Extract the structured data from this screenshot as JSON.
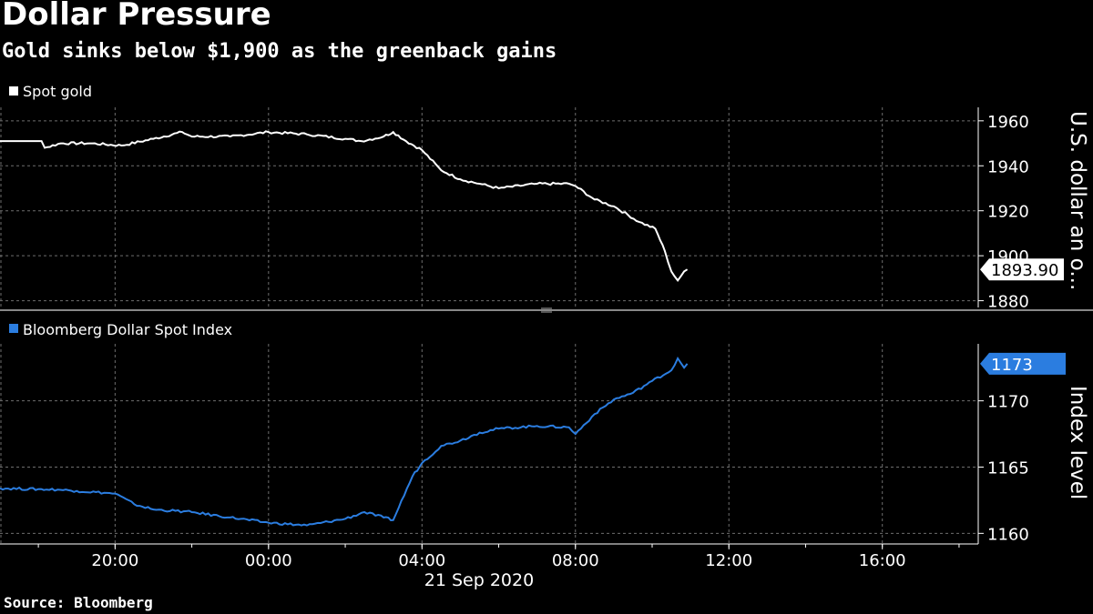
{
  "header": {
    "title": "Dollar Pressure",
    "subtitle": "Gold sinks below $1,900 as the greenback gains"
  },
  "footer": {
    "source": "Source: Bloomberg"
  },
  "colors": {
    "background": "#000000",
    "gold_line": "#ffffff",
    "dollar_line": "#2b7de0",
    "grid": "#6e6e6e"
  },
  "chart_data": [
    {
      "type": "line",
      "panel": "top",
      "ylabel": "U.S. dollar an o...",
      "yticks": [
        1880,
        1900,
        1920,
        1940,
        1960
      ],
      "ylim": [
        1877,
        1966
      ],
      "grid": true,
      "legend_position": "top-left",
      "last_value_label": "1893.90",
      "series": [
        {
          "name": "Spot gold",
          "x": [
            "2020-09-20T17:00",
            "2020-09-20T18:05",
            "2020-09-20T18:10",
            "2020-09-20T18:35",
            "2020-09-20T19:20",
            "2020-09-20T20:10",
            "2020-09-20T21:00",
            "2020-09-20T21:45",
            "2020-09-20T22:00",
            "2020-09-20T23:00",
            "2020-09-21T00:00",
            "2020-09-21T01:00",
            "2020-09-21T02:00",
            "2020-09-21T02:25",
            "2020-09-21T03:00",
            "2020-09-21T03:15",
            "2020-09-21T03:35",
            "2020-09-21T04:00",
            "2020-09-21T04:30",
            "2020-09-21T05:00",
            "2020-09-21T05:30",
            "2020-09-21T06:00",
            "2020-09-21T07:00",
            "2020-09-21T07:50",
            "2020-09-21T08:00",
            "2020-09-21T08:30",
            "2020-09-21T09:00",
            "2020-09-21T09:40",
            "2020-09-21T10:05",
            "2020-09-21T10:20",
            "2020-09-21T10:30",
            "2020-09-21T10:40",
            "2020-09-21T10:50",
            "2020-09-21T10:55"
          ],
          "values": [
            1951,
            1951,
            1948,
            1950,
            1950,
            1949,
            1952,
            1955,
            1953,
            1953,
            1955,
            1954,
            1952,
            1951,
            1953,
            1955,
            1951,
            1947,
            1938,
            1934,
            1932,
            1930,
            1932,
            1932,
            1931,
            1925,
            1922,
            1915,
            1912,
            1902,
            1893,
            1889,
            1893,
            1893.9
          ]
        }
      ]
    },
    {
      "type": "line",
      "panel": "bottom",
      "ylabel": "Index level",
      "yticks": [
        1160,
        1165,
        1170
      ],
      "ylim": [
        1159.2,
        1174.3
      ],
      "grid": true,
      "legend_position": "top-left",
      "last_value_label": "1173",
      "series": [
        {
          "name": "Bloomberg Dollar Spot Index",
          "x": [
            "2020-09-20T17:00",
            "2020-09-20T18:30",
            "2020-09-20T19:00",
            "2020-09-20T20:00",
            "2020-09-20T20:30",
            "2020-09-20T21:00",
            "2020-09-20T22:00",
            "2020-09-20T23:00",
            "2020-09-21T00:00",
            "2020-09-21T01:00",
            "2020-09-21T02:00",
            "2020-09-21T02:30",
            "2020-09-21T03:00",
            "2020-09-21T03:15",
            "2020-09-21T03:45",
            "2020-09-21T04:00",
            "2020-09-21T04:30",
            "2020-09-21T05:00",
            "2020-09-21T05:30",
            "2020-09-21T06:00",
            "2020-09-21T07:00",
            "2020-09-21T07:50",
            "2020-09-21T08:00",
            "2020-09-21T08:30",
            "2020-09-21T09:00",
            "2020-09-21T09:30",
            "2020-09-21T10:00",
            "2020-09-21T10:30",
            "2020-09-21T10:40",
            "2020-09-21T10:50",
            "2020-09-21T10:55"
          ],
          "values": [
            1163.4,
            1163.3,
            1163.2,
            1163.0,
            1162.2,
            1161.8,
            1161.6,
            1161.2,
            1160.8,
            1160.6,
            1161.1,
            1161.6,
            1161.2,
            1161.0,
            1164.3,
            1165.3,
            1166.6,
            1167.0,
            1167.6,
            1167.9,
            1168.1,
            1168.0,
            1167.5,
            1169.0,
            1170.1,
            1170.6,
            1171.5,
            1172.3,
            1173.2,
            1172.5,
            1172.8
          ]
        }
      ]
    }
  ],
  "x_axis": {
    "ticks": [
      "2020-09-20T20:00",
      "2020-09-21T00:00",
      "2020-09-21T04:00",
      "2020-09-21T08:00",
      "2020-09-21T12:00",
      "2020-09-21T16:00"
    ],
    "tick_labels": [
      "20:00",
      "00:00",
      "04:00",
      "08:00",
      "12:00",
      "16:00"
    ],
    "date_label": "21 Sep 2020",
    "xlim": [
      "2020-09-20T17:00",
      "2020-09-21T18:30"
    ]
  }
}
